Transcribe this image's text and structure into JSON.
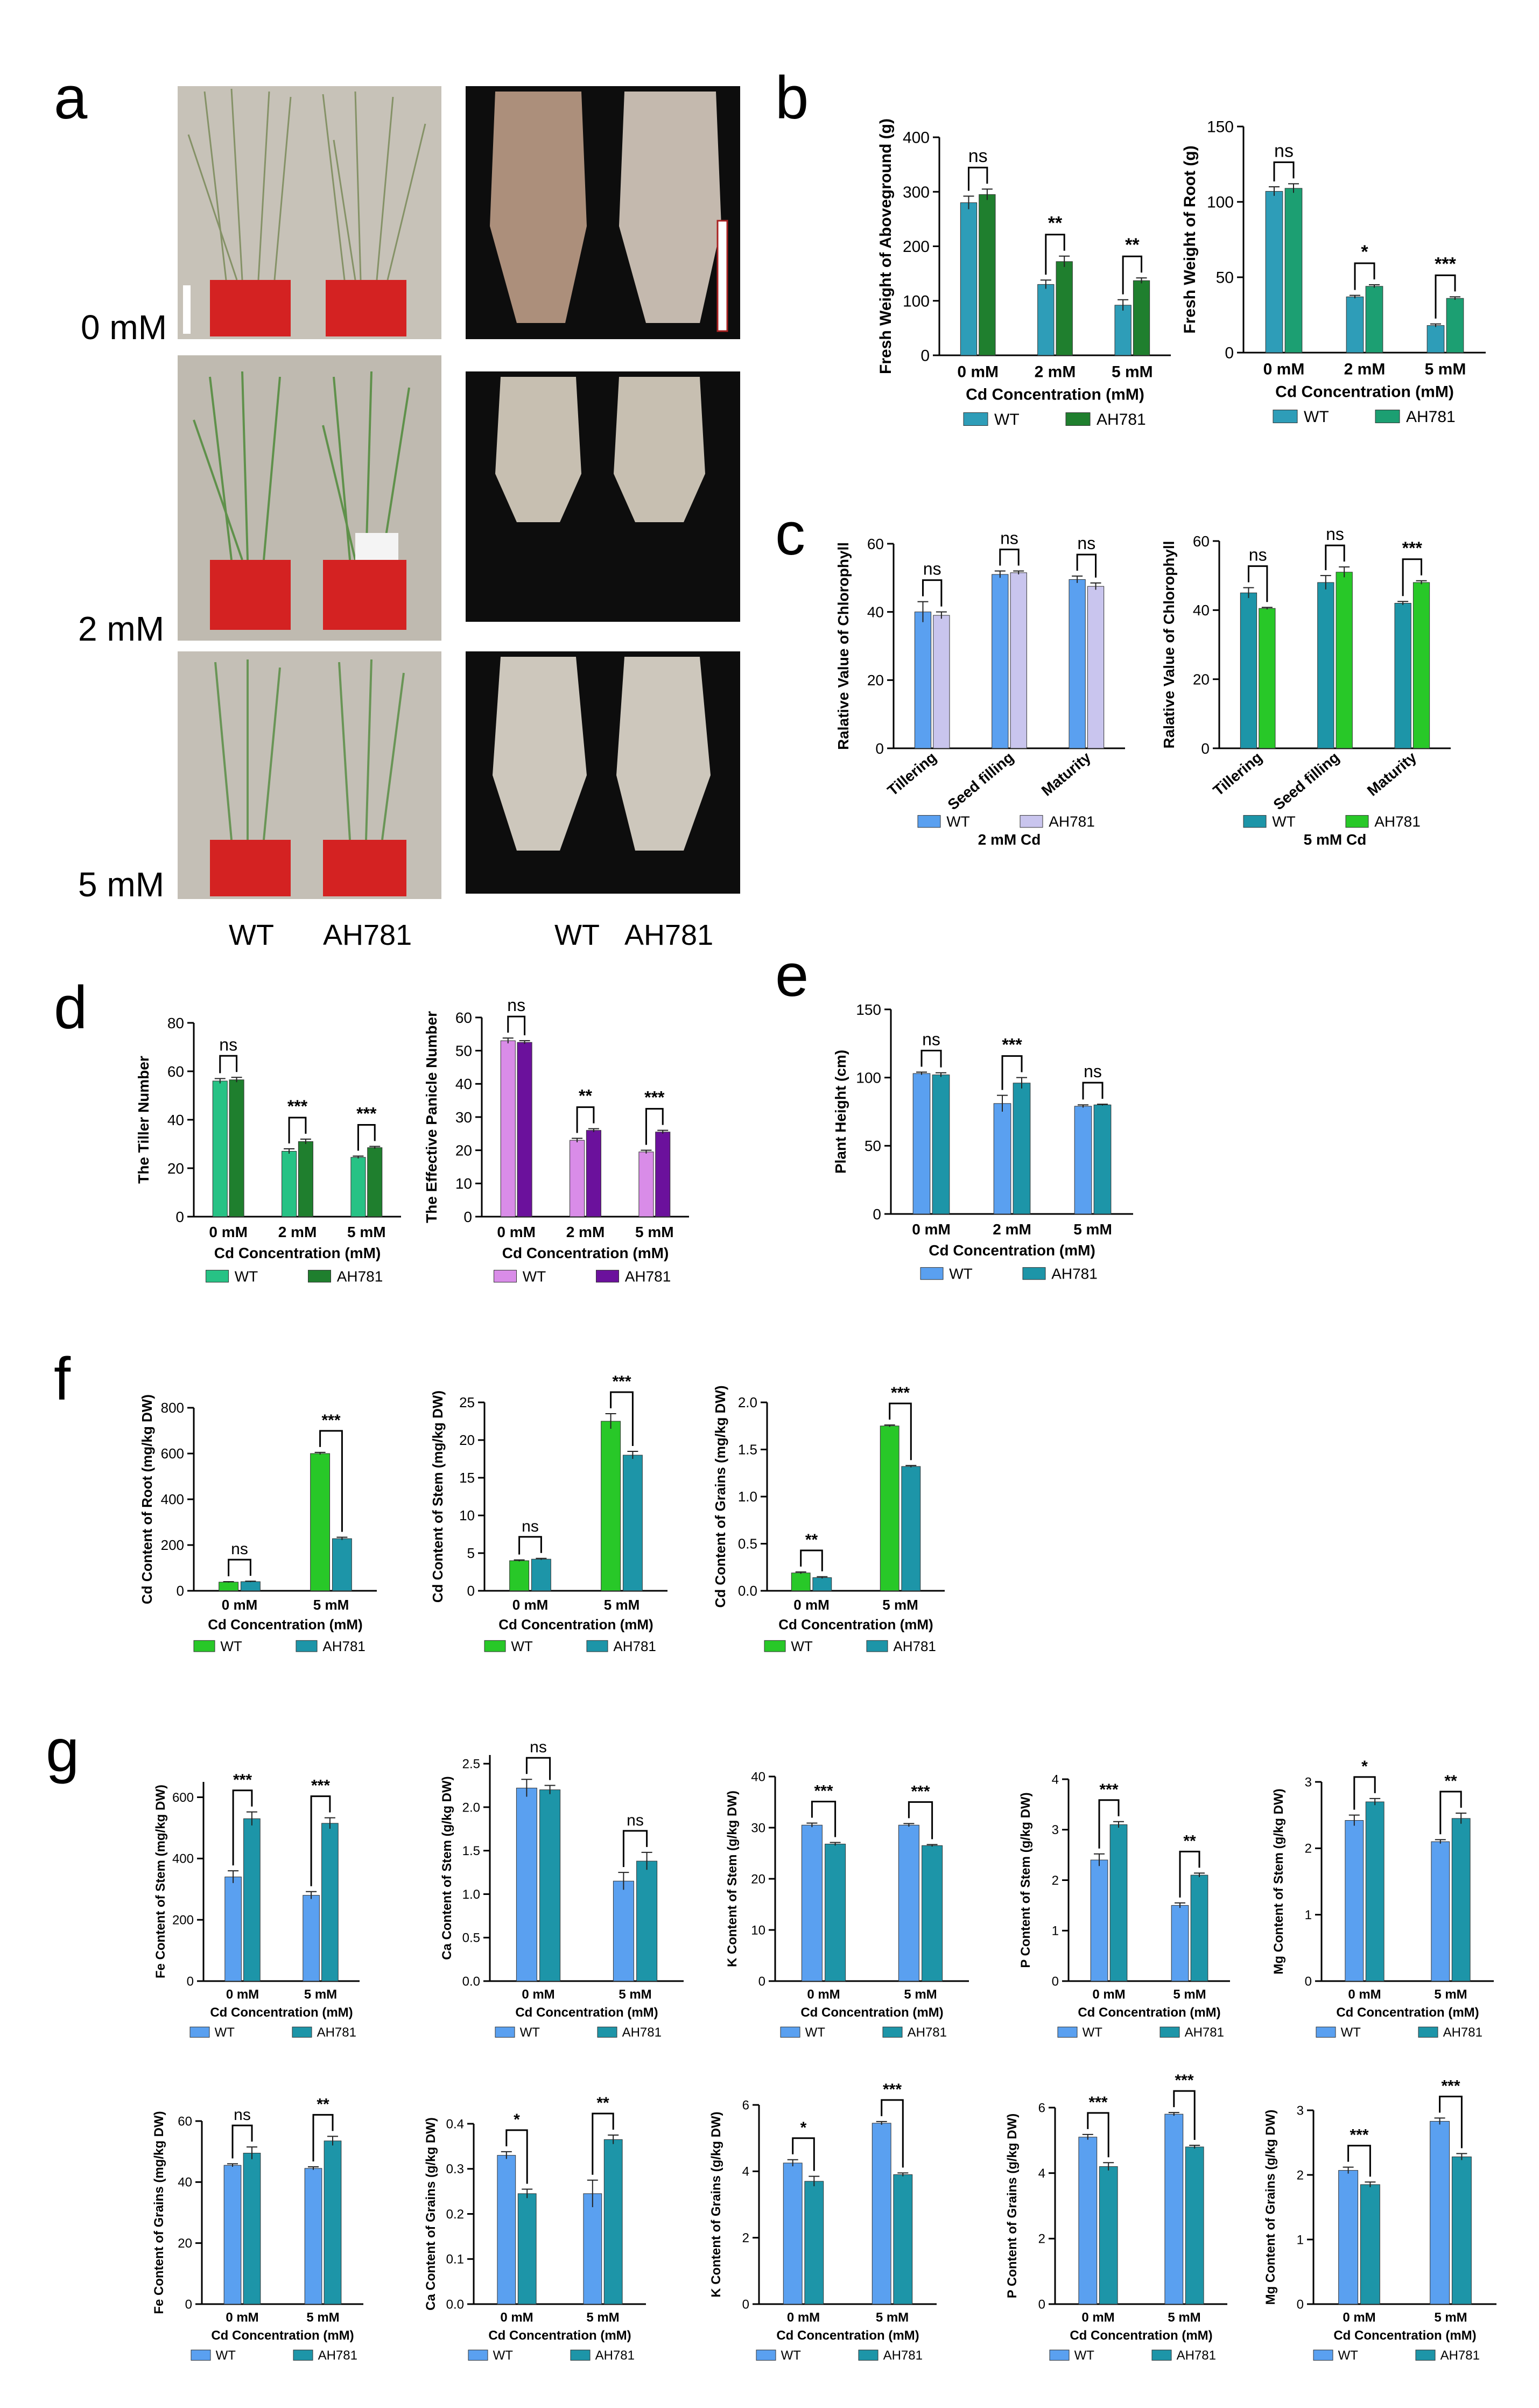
{
  "figure": {
    "panel_labels": [
      "a",
      "b",
      "c",
      "d",
      "e",
      "f",
      "g"
    ],
    "photo_treatments": [
      "0 mM",
      "2 mM",
      "5 mM"
    ],
    "photo_genotypes_shoot": [
      "WT",
      "AH781"
    ],
    "photo_genotypes_root": [
      "WT",
      "AH781"
    ]
  },
  "colors": {
    "blue_wt": "#5AA0F0",
    "teal_wt": "#2E9DB8",
    "teal_ah": "#1D95A8",
    "darkgreen_ah": "#1F7F2E",
    "seagreen_ah": "#1C9F72",
    "lavender_ah": "#C9C5EE",
    "bright_green": "#28C828",
    "mint_wt": "#27C285",
    "pink_wt": "#D98CE8",
    "purple_ah": "#6B119C",
    "pot_red": "#D42222"
  },
  "chart_data": [
    {
      "id": "b1",
      "type": "bar",
      "ylabel": "Fresh Weight of Aboveground (g)",
      "xlabel": "Cd Concentration (mM)",
      "categories": [
        "0 mM",
        "2 mM",
        "5 mM"
      ],
      "yticks": [
        0,
        100,
        200,
        300,
        400
      ],
      "ylim": [
        0,
        400
      ],
      "sig": [
        "ns",
        "**",
        "**"
      ],
      "series": [
        {
          "name": "WT",
          "color": "#2E9DB8",
          "values": [
            280,
            130,
            92
          ],
          "err": [
            12,
            8,
            10
          ]
        },
        {
          "name": "AH781",
          "color": "#1F7F2E",
          "values": [
            295,
            172,
            137
          ],
          "err": [
            10,
            10,
            5
          ]
        }
      ]
    },
    {
      "id": "b2",
      "type": "bar",
      "ylabel": "Fresh Weight of Root (g)",
      "xlabel": "Cd Concentration (mM)",
      "categories": [
        "0 mM",
        "2 mM",
        "5 mM"
      ],
      "yticks": [
        0,
        50,
        100,
        150
      ],
      "ylim": [
        0,
        150
      ],
      "sig": [
        "ns",
        "*",
        "***"
      ],
      "series": [
        {
          "name": "WT",
          "color": "#2E9DB8",
          "values": [
            107,
            37,
            18
          ],
          "err": [
            3,
            1,
            1
          ]
        },
        {
          "name": "AH781",
          "color": "#1C9F72",
          "values": [
            109,
            44,
            36
          ],
          "err": [
            3,
            1,
            1
          ]
        }
      ]
    },
    {
      "id": "c1",
      "type": "bar",
      "ylabel": "Ralative Value of Chlorophyll",
      "xlabel": "2 mM Cd",
      "xlabel_bold": true,
      "rot_cats": true,
      "categories": [
        "Tillering",
        "Seed filling",
        "Maturity"
      ],
      "yticks": [
        0,
        20,
        40,
        60
      ],
      "ylim": [
        0,
        60
      ],
      "sig": [
        "ns",
        "ns",
        "ns"
      ],
      "series": [
        {
          "name": "WT",
          "color": "#5AA0F0",
          "values": [
            40,
            51,
            49.5
          ],
          "err": [
            3,
            1,
            1
          ]
        },
        {
          "name": "AH781",
          "color": "#C9C5EE",
          "values": [
            39,
            51.5,
            47.5
          ],
          "err": [
            1,
            0.5,
            1
          ]
        }
      ]
    },
    {
      "id": "c2",
      "type": "bar",
      "ylabel": "Ralative Value of Chlorophyll",
      "xlabel": "5 mM Cd",
      "xlabel_bold": true,
      "rot_cats": true,
      "categories": [
        "Tillering",
        "Seed filling",
        "Maturity"
      ],
      "yticks": [
        0,
        20,
        40,
        60
      ],
      "ylim": [
        0,
        60
      ],
      "sig": [
        "ns",
        "ns",
        "***"
      ],
      "series": [
        {
          "name": "WT",
          "color": "#1D95A8",
          "values": [
            45,
            48,
            42
          ],
          "err": [
            1.5,
            2,
            0.5
          ]
        },
        {
          "name": "AH781",
          "color": "#28C828",
          "values": [
            40.5,
            51,
            48
          ],
          "err": [
            0.3,
            1.5,
            0.5
          ]
        }
      ]
    },
    {
      "id": "d1",
      "type": "bar",
      "ylabel": "The Tiller Number",
      "xlabel": "Cd Concentration (mM)",
      "categories": [
        "0 mM",
        "2 mM",
        "5 mM"
      ],
      "yticks": [
        0,
        20,
        40,
        60,
        80
      ],
      "ylim": [
        0,
        80
      ],
      "sig": [
        "ns",
        "***",
        "***"
      ],
      "series": [
        {
          "name": "WT",
          "color": "#27C285",
          "values": [
            56,
            27,
            24.5
          ],
          "err": [
            1,
            1,
            0.5
          ]
        },
        {
          "name": "AH781",
          "color": "#1F7F2E",
          "values": [
            56.5,
            31,
            28.5
          ],
          "err": [
            1,
            1,
            0.5
          ]
        }
      ]
    },
    {
      "id": "d2",
      "type": "bar",
      "ylabel": "The Effective Panicle Number",
      "xlabel": "Cd Concentration (mM)",
      "categories": [
        "0 mM",
        "2 mM",
        "5 mM"
      ],
      "yticks": [
        0,
        10,
        20,
        30,
        40,
        50,
        60
      ],
      "ylim": [
        0,
        60
      ],
      "sig": [
        "ns",
        "**",
        "***"
      ],
      "series": [
        {
          "name": "WT",
          "color": "#D98CE8",
          "values": [
            53,
            23,
            19.5
          ],
          "err": [
            0.8,
            0.6,
            0.5
          ]
        },
        {
          "name": "AH781",
          "color": "#6B119C",
          "values": [
            52.5,
            26,
            25.5
          ],
          "err": [
            0.5,
            0.5,
            0.5
          ]
        }
      ]
    },
    {
      "id": "e",
      "type": "bar",
      "ylabel": "Plant Height (cm)",
      "xlabel": "Cd Concentration (mM)",
      "categories": [
        "0 mM",
        "2 mM",
        "5 mM"
      ],
      "yticks": [
        0,
        50,
        100,
        150
      ],
      "ylim": [
        0,
        150
      ],
      "sig": [
        "ns",
        "***",
        "ns"
      ],
      "series": [
        {
          "name": "WT",
          "color": "#5AA0F0",
          "values": [
            103,
            81,
            79
          ],
          "err": [
            1,
            6,
            1
          ]
        },
        {
          "name": "AH781",
          "color": "#1D95A8",
          "values": [
            102,
            96,
            80
          ],
          "err": [
            1.5,
            4,
            0.5
          ]
        }
      ]
    },
    {
      "id": "f1",
      "type": "bar",
      "ylabel": "Cd Content of Root (mg/kg DW)",
      "xlabel": "Cd Concentration (mM)",
      "categories": [
        "0 mM",
        "5 mM"
      ],
      "yticks": [
        0,
        200,
        400,
        600,
        800
      ],
      "ylim": [
        0,
        800
      ],
      "sig": [
        "ns",
        "***"
      ],
      "series": [
        {
          "name": "WT",
          "color": "#28C828",
          "values": [
            38,
            600
          ],
          "err": [
            2,
            5
          ]
        },
        {
          "name": "AH781",
          "color": "#1D95A8",
          "values": [
            40,
            228
          ],
          "err": [
            2,
            6
          ]
        }
      ]
    },
    {
      "id": "f2",
      "type": "bar",
      "ylabel": "Cd Content of Stem (mg/kg DW)",
      "xlabel": "Cd Concentration (mM)",
      "categories": [
        "0 mM",
        "5 mM"
      ],
      "yticks": [
        0,
        5,
        10,
        15,
        20,
        25
      ],
      "ylim": [
        0,
        25
      ],
      "sig": [
        "ns",
        "***"
      ],
      "series": [
        {
          "name": "WT",
          "color": "#28C828",
          "values": [
            4,
            22.5
          ],
          "err": [
            0.1,
            1
          ]
        },
        {
          "name": "AH781",
          "color": "#1D95A8",
          "values": [
            4.2,
            18
          ],
          "err": [
            0.1,
            0.5
          ]
        }
      ]
    },
    {
      "id": "f3",
      "type": "bar",
      "ylabel": "Cd Content of Grains (mg/kg DW)",
      "xlabel": "Cd Concentration (mM)",
      "categories": [
        "0 mM",
        "5 mM"
      ],
      "yticks": [
        0,
        0.5,
        1.0,
        1.5,
        2.0
      ],
      "ytick_labels": [
        "0.0",
        "0.5",
        "1.0",
        "1.5",
        "2.0"
      ],
      "ylim": [
        0,
        2
      ],
      "sig": [
        "**",
        "***"
      ],
      "series": [
        {
          "name": "WT",
          "color": "#28C828",
          "values": [
            0.19,
            1.75
          ],
          "err": [
            0.01,
            0.01
          ]
        },
        {
          "name": "AH781",
          "color": "#1D95A8",
          "values": [
            0.14,
            1.32
          ],
          "err": [
            0.01,
            0.01
          ]
        }
      ]
    },
    {
      "id": "g1",
      "type": "bar",
      "ylabel": "Fe Content of Stem (mg/kg DW)",
      "xlabel": "Cd Concentration (mM)",
      "categories": [
        "0 mM",
        "5 mM"
      ],
      "yticks": [
        0,
        200,
        400,
        600
      ],
      "ylim": [
        0,
        650
      ],
      "sig": [
        "***",
        "***"
      ],
      "series": [
        {
          "name": "WT",
          "color": "#5AA0F0",
          "values": [
            340,
            280
          ],
          "err": [
            20,
            12
          ]
        },
        {
          "name": "AH781",
          "color": "#1D95A8",
          "values": [
            530,
            515
          ],
          "err": [
            22,
            18
          ]
        }
      ]
    },
    {
      "id": "g2",
      "type": "bar",
      "ylabel": "Ca Content of Stem (g/kg DW)",
      "xlabel": "Cd Concentration (mM)",
      "categories": [
        "0 mM",
        "5 mM"
      ],
      "yticks": [
        0,
        0.5,
        1.0,
        1.5,
        2.0,
        2.5
      ],
      "ytick_labels": [
        "0.0",
        "0.5",
        "1.0",
        "1.5",
        "2.0",
        "2.5"
      ],
      "ylim": [
        0,
        2.6
      ],
      "sig": [
        "ns",
        "ns"
      ],
      "series": [
        {
          "name": "WT",
          "color": "#5AA0F0",
          "values": [
            2.22,
            1.15
          ],
          "err": [
            0.1,
            0.1
          ]
        },
        {
          "name": "AH781",
          "color": "#1D95A8",
          "values": [
            2.2,
            1.38
          ],
          "err": [
            0.05,
            0.1
          ]
        }
      ]
    },
    {
      "id": "g3",
      "type": "bar",
      "ylabel": "K Content of Stem (g/kg DW)",
      "xlabel": "Cd Concentration (mM)",
      "categories": [
        "0 mM",
        "5 mM"
      ],
      "yticks": [
        0,
        10,
        20,
        30,
        40
      ],
      "ylim": [
        0,
        40
      ],
      "sig": [
        "***",
        "***"
      ],
      "series": [
        {
          "name": "WT",
          "color": "#5AA0F0",
          "values": [
            30.5,
            30.5
          ],
          "err": [
            0.4,
            0.3
          ]
        },
        {
          "name": "AH781",
          "color": "#1D95A8",
          "values": [
            26.8,
            26.5
          ],
          "err": [
            0.3,
            0.2
          ]
        }
      ]
    },
    {
      "id": "g4",
      "type": "bar",
      "ylabel": "P Content of Stem (g/kg DW)",
      "xlabel": "Cd Concentration (mM)",
      "categories": [
        "0 mM",
        "5 mM"
      ],
      "yticks": [
        0,
        1,
        2,
        3,
        4
      ],
      "ylim": [
        0,
        4
      ],
      "sig": [
        "***",
        "**"
      ],
      "series": [
        {
          "name": "WT",
          "color": "#5AA0F0",
          "values": [
            2.4,
            1.5
          ],
          "err": [
            0.12,
            0.05
          ]
        },
        {
          "name": "AH781",
          "color": "#1D95A8",
          "values": [
            3.1,
            2.1
          ],
          "err": [
            0.06,
            0.04
          ]
        }
      ]
    },
    {
      "id": "g5",
      "type": "bar",
      "ylabel": "Mg Content of Stem (g/kg DW)",
      "xlabel": "Cd Concentration (mM)",
      "categories": [
        "0 mM",
        "5 mM"
      ],
      "yticks": [
        0,
        1,
        2,
        3
      ],
      "ylim": [
        0,
        3
      ],
      "sig": [
        "*",
        "**"
      ],
      "series": [
        {
          "name": "WT",
          "color": "#5AA0F0",
          "values": [
            2.42,
            2.1
          ],
          "err": [
            0.08,
            0.03
          ]
        },
        {
          "name": "AH781",
          "color": "#1D95A8",
          "values": [
            2.7,
            2.45
          ],
          "err": [
            0.05,
            0.08
          ]
        }
      ]
    },
    {
      "id": "g6",
      "type": "bar",
      "ylabel": "Fe Content of Grains (mg/kg DW)",
      "xlabel": "Cd Concentration (mM)",
      "categories": [
        "0 mM",
        "5 mM"
      ],
      "yticks": [
        0,
        20,
        40,
        60
      ],
      "ylim": [
        0,
        60
      ],
      "sig": [
        "ns",
        "**"
      ],
      "series": [
        {
          "name": "WT",
          "color": "#5AA0F0",
          "values": [
            45.5,
            44.5
          ],
          "err": [
            0.5,
            0.5
          ]
        },
        {
          "name": "AH781",
          "color": "#1D95A8",
          "values": [
            49.5,
            53.5
          ],
          "err": [
            2,
            1.5
          ]
        }
      ]
    },
    {
      "id": "g7",
      "type": "bar",
      "ylabel": "Ca Content of Grains (g/kg DW)",
      "xlabel": "Cd Concentration (mM)",
      "categories": [
        "0 mM",
        "5 mM"
      ],
      "yticks": [
        0,
        0.1,
        0.2,
        0.3,
        0.4
      ],
      "ytick_labels": [
        "0.0",
        "0.1",
        "0.2",
        "0.3",
        "0.4"
      ],
      "ylim": [
        0,
        0.4
      ],
      "sig": [
        "*",
        "**"
      ],
      "series": [
        {
          "name": "WT",
          "color": "#5AA0F0",
          "values": [
            0.33,
            0.245
          ],
          "err": [
            0.008,
            0.03
          ]
        },
        {
          "name": "AH781",
          "color": "#1D95A8",
          "values": [
            0.245,
            0.365
          ],
          "err": [
            0.01,
            0.01
          ]
        }
      ]
    },
    {
      "id": "g8",
      "type": "bar",
      "ylabel": "K Content of Grains (g/kg DW)",
      "xlabel": "Cd Concentration (mM)",
      "categories": [
        "0 mM",
        "5 mM"
      ],
      "yticks": [
        0,
        2,
        4,
        6
      ],
      "ylim": [
        0,
        6
      ],
      "sig": [
        "*",
        "***"
      ],
      "series": [
        {
          "name": "WT",
          "color": "#5AA0F0",
          "values": [
            4.25,
            5.45
          ],
          "err": [
            0.1,
            0.05
          ]
        },
        {
          "name": "AH781",
          "color": "#1D95A8",
          "values": [
            3.7,
            3.9
          ],
          "err": [
            0.15,
            0.05
          ]
        }
      ]
    },
    {
      "id": "g9",
      "type": "bar",
      "ylabel": "P Content of Grains (g/kg DW)",
      "xlabel": "Cd Concentration (mM)",
      "categories": [
        "0 mM",
        "5 mM"
      ],
      "yticks": [
        0,
        2,
        4,
        6
      ],
      "ylim": [
        0,
        6
      ],
      "sig": [
        "***",
        "***"
      ],
      "series": [
        {
          "name": "WT",
          "color": "#5AA0F0",
          "values": [
            5.1,
            5.8
          ],
          "err": [
            0.08,
            0.05
          ]
        },
        {
          "name": "AH781",
          "color": "#1D95A8",
          "values": [
            4.2,
            4.8
          ],
          "err": [
            0.12,
            0.05
          ]
        }
      ]
    },
    {
      "id": "g10",
      "type": "bar",
      "ylabel": "Mg Content of Grains (g/kg DW)",
      "xlabel": "Cd Concentration (mM)",
      "categories": [
        "0 mM",
        "5 mM"
      ],
      "yticks": [
        0,
        1,
        2,
        3
      ],
      "ylim": [
        0,
        3
      ],
      "sig": [
        "***",
        "***"
      ],
      "series": [
        {
          "name": "WT",
          "color": "#5AA0F0",
          "values": [
            2.07,
            2.83
          ],
          "err": [
            0.05,
            0.05
          ]
        },
        {
          "name": "AH781",
          "color": "#1D95A8",
          "values": [
            1.85,
            2.28
          ],
          "err": [
            0.04,
            0.05
          ]
        }
      ]
    }
  ]
}
